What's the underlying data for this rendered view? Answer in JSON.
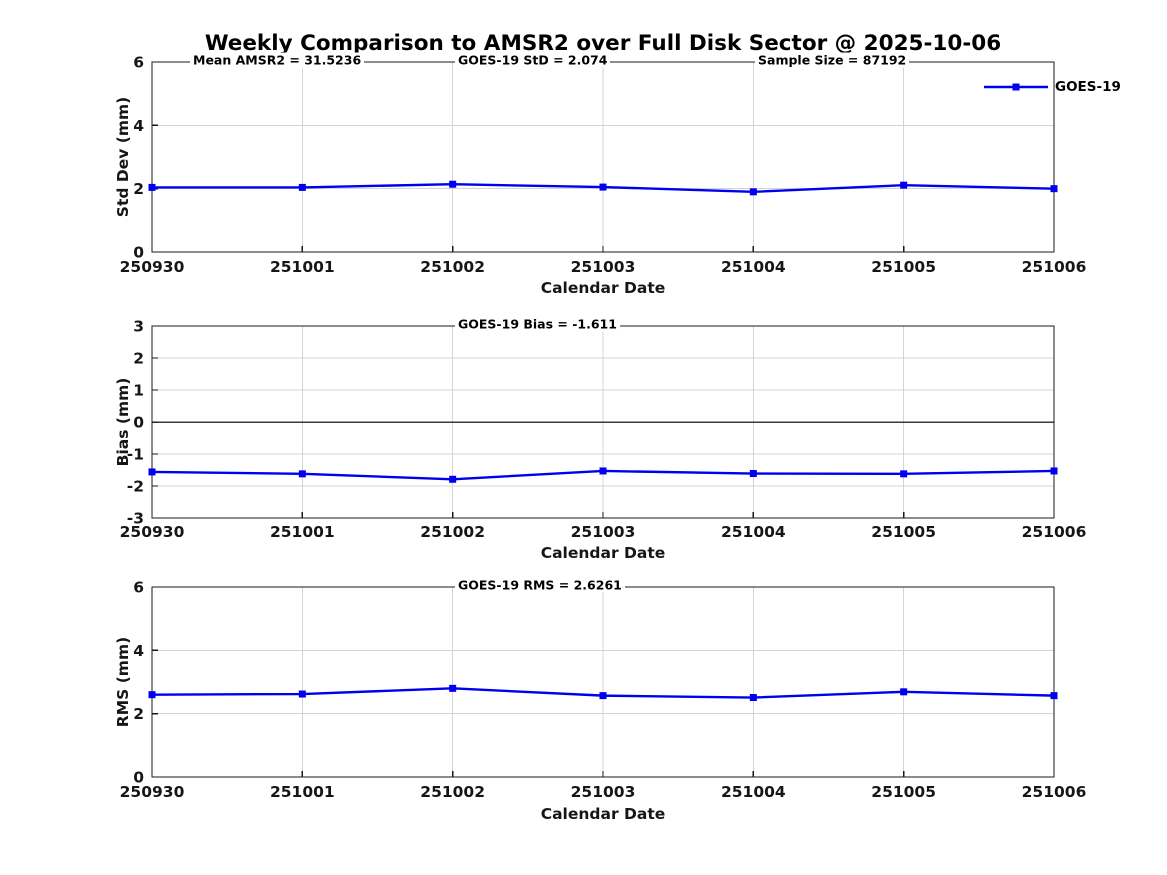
{
  "title": "Weekly Comparison to AMSR2 over Full Disk Sector @ 2025-10-06",
  "legend": {
    "label": "GOES-19"
  },
  "colors": {
    "line": "#0000ee",
    "grid": "#d4d4d4",
    "axis": "#1a1a1a",
    "zero_line": "#3a3a3a",
    "text": "#000000"
  },
  "stats": {
    "mean_amsr2": "31.5236",
    "goes19_std": "2.074",
    "sample_size": "87192",
    "goes19_bias": "-1.611",
    "goes19_rms": "2.6261"
  },
  "chart_data": [
    {
      "type": "line",
      "panel": "std-dev",
      "ylabel": "Std Dev (mm)",
      "xlabel": "Calendar Date",
      "ylim": [
        0,
        6
      ],
      "yticks": [
        0,
        2,
        4,
        6
      ],
      "grid": true,
      "zero_line": false,
      "legend_position": "northeast-outside-top",
      "categories": [
        "250930",
        "251001",
        "251002",
        "251003",
        "251004",
        "251005",
        "251006"
      ],
      "series": [
        {
          "name": "GOES-19",
          "values": [
            2.04,
            2.04,
            2.14,
            2.05,
            1.9,
            2.11,
            2.0
          ]
        }
      ],
      "annotations": [
        "Mean AMSR2 = 31.5236",
        "GOES-19 StD = 2.074",
        "Sample Size = 87192"
      ]
    },
    {
      "type": "line",
      "panel": "bias",
      "ylabel": "Bias (mm)",
      "xlabel": "Calendar Date",
      "ylim": [
        -3,
        3
      ],
      "yticks": [
        -3,
        -2,
        -1,
        0,
        1,
        2,
        3
      ],
      "grid": true,
      "zero_line": true,
      "categories": [
        "250930",
        "251001",
        "251002",
        "251003",
        "251004",
        "251005",
        "251006"
      ],
      "series": [
        {
          "name": "GOES-19",
          "values": [
            -1.56,
            -1.62,
            -1.79,
            -1.53,
            -1.61,
            -1.62,
            -1.53
          ]
        }
      ],
      "annotations": [
        "GOES-19 Bias  = -1.611"
      ]
    },
    {
      "type": "line",
      "panel": "rms",
      "ylabel": "RMS (mm)",
      "xlabel": "Calendar Date",
      "ylim": [
        0,
        6
      ],
      "yticks": [
        0,
        2,
        4,
        6
      ],
      "grid": true,
      "zero_line": false,
      "categories": [
        "250930",
        "251001",
        "251002",
        "251003",
        "251004",
        "251005",
        "251006"
      ],
      "series": [
        {
          "name": "GOES-19",
          "values": [
            2.6,
            2.62,
            2.8,
            2.57,
            2.51,
            2.69,
            2.57
          ]
        }
      ],
      "annotations": [
        "GOES-19 RMS = 2.6261"
      ]
    }
  ]
}
